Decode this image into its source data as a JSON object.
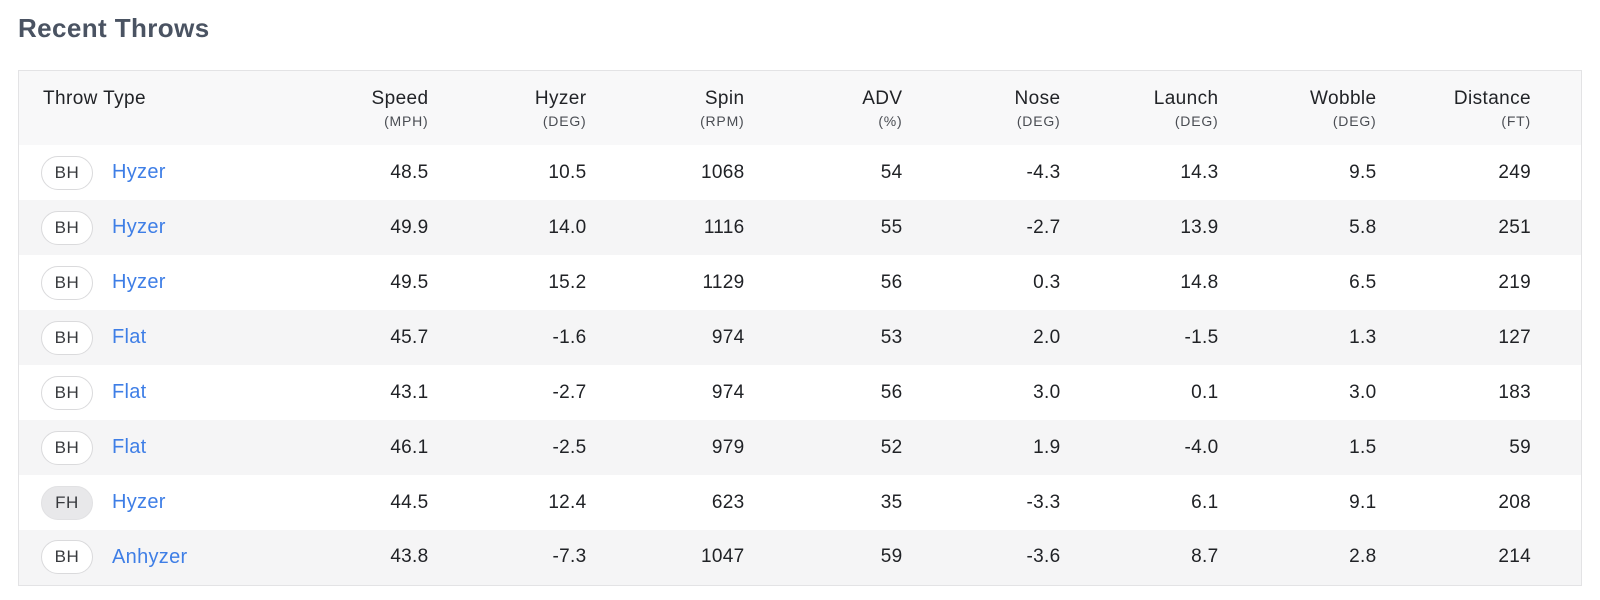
{
  "page": {
    "title": "Recent Throws"
  },
  "colors": {
    "title_text": "#4a5362",
    "header_bg": "#f8f8f9",
    "header_label": "#212327",
    "header_unit": "#4a4d53",
    "row_alt_bg": "#f5f5f6",
    "cell_text": "#202226",
    "link_blue": "#3e7ee6",
    "badge_border": "#dadadc",
    "badge_fh_bg": "#e8e8ea",
    "table_border": "#e3e3e5"
  },
  "table": {
    "columns": [
      {
        "label": "Throw Type",
        "unit": ""
      },
      {
        "label": "Speed",
        "unit": "(MPH)"
      },
      {
        "label": "Hyzer",
        "unit": "(DEG)"
      },
      {
        "label": "Spin",
        "unit": "(RPM)"
      },
      {
        "label": "ADV",
        "unit": "(%)"
      },
      {
        "label": "Nose",
        "unit": "(DEG)"
      },
      {
        "label": "Launch",
        "unit": "(DEG)"
      },
      {
        "label": "Wobble",
        "unit": "(DEG)"
      },
      {
        "label": "Distance",
        "unit": "(FT)"
      }
    ],
    "rows": [
      {
        "hand": "BH",
        "type": "Hyzer",
        "values": [
          "48.5",
          "10.5",
          "1068",
          "54",
          "-4.3",
          "14.3",
          "9.5",
          "249"
        ]
      },
      {
        "hand": "BH",
        "type": "Hyzer",
        "values": [
          "49.9",
          "14.0",
          "1116",
          "55",
          "-2.7",
          "13.9",
          "5.8",
          "251"
        ]
      },
      {
        "hand": "BH",
        "type": "Hyzer",
        "values": [
          "49.5",
          "15.2",
          "1129",
          "56",
          "0.3",
          "14.8",
          "6.5",
          "219"
        ]
      },
      {
        "hand": "BH",
        "type": "Flat",
        "values": [
          "45.7",
          "-1.6",
          "974",
          "53",
          "2.0",
          "-1.5",
          "1.3",
          "127"
        ]
      },
      {
        "hand": "BH",
        "type": "Flat",
        "values": [
          "43.1",
          "-2.7",
          "974",
          "56",
          "3.0",
          "0.1",
          "3.0",
          "183"
        ]
      },
      {
        "hand": "BH",
        "type": "Flat",
        "values": [
          "46.1",
          "-2.5",
          "979",
          "52",
          "1.9",
          "-4.0",
          "1.5",
          "59"
        ]
      },
      {
        "hand": "FH",
        "type": "Hyzer",
        "values": [
          "44.5",
          "12.4",
          "623",
          "35",
          "-3.3",
          "6.1",
          "9.1",
          "208"
        ]
      },
      {
        "hand": "BH",
        "type": "Anhyzer",
        "values": [
          "43.8",
          "-7.3",
          "1047",
          "59",
          "-3.6",
          "8.7",
          "2.8",
          "214"
        ]
      }
    ]
  }
}
